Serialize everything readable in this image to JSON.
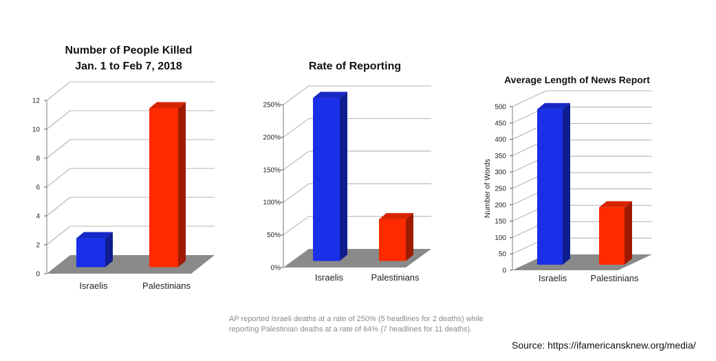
{
  "chart_data": [
    {
      "type": "bar",
      "title": [
        "Number of People Killed",
        "Jan. 1 to Feb 7, 2018"
      ],
      "categories": [
        "Israelis",
        "Palestinians"
      ],
      "values": [
        2,
        11
      ],
      "colors": [
        "#1a2fe8",
        "#ff2a00"
      ],
      "ylim": [
        0,
        12
      ],
      "ticks": [
        "0",
        "2",
        "4",
        "6",
        "8",
        "10",
        "12"
      ],
      "ylabel": "",
      "xlabel": "",
      "grid": true
    },
    {
      "type": "bar",
      "title": [
        "Rate of Reporting"
      ],
      "categories": [
        "Israelis",
        "Palestinians"
      ],
      "values": [
        250,
        64
      ],
      "colors": [
        "#1a2fe8",
        "#ff2a00"
      ],
      "ylim": [
        0,
        250
      ],
      "ticks": [
        "0%",
        "50%",
        "100%",
        "150%",
        "200%",
        "250%"
      ],
      "ylabel": "",
      "xlabel": "",
      "grid": true
    },
    {
      "type": "bar",
      "title": [
        "Average Length of News Report"
      ],
      "categories": [
        "Israelis",
        "Palestinians"
      ],
      "values": [
        475,
        175
      ],
      "colors": [
        "#1a2fe8",
        "#ff2a00"
      ],
      "ylim": [
        0,
        500
      ],
      "ticks": [
        "0",
        "50",
        "100",
        "150",
        "200",
        "250",
        "300",
        "350",
        "400",
        "450",
        "500"
      ],
      "ylabel": "Number of Words",
      "xlabel": "",
      "grid": true
    }
  ],
  "note": "AP reported Israeli deaths at a rate of 250% (5 headlines for 2 deaths) while reporting Palestinian deaths at a rate of 64% (7 headlines for 11 deaths).",
  "source": "Source: https://ifamericansknew.org/media/"
}
